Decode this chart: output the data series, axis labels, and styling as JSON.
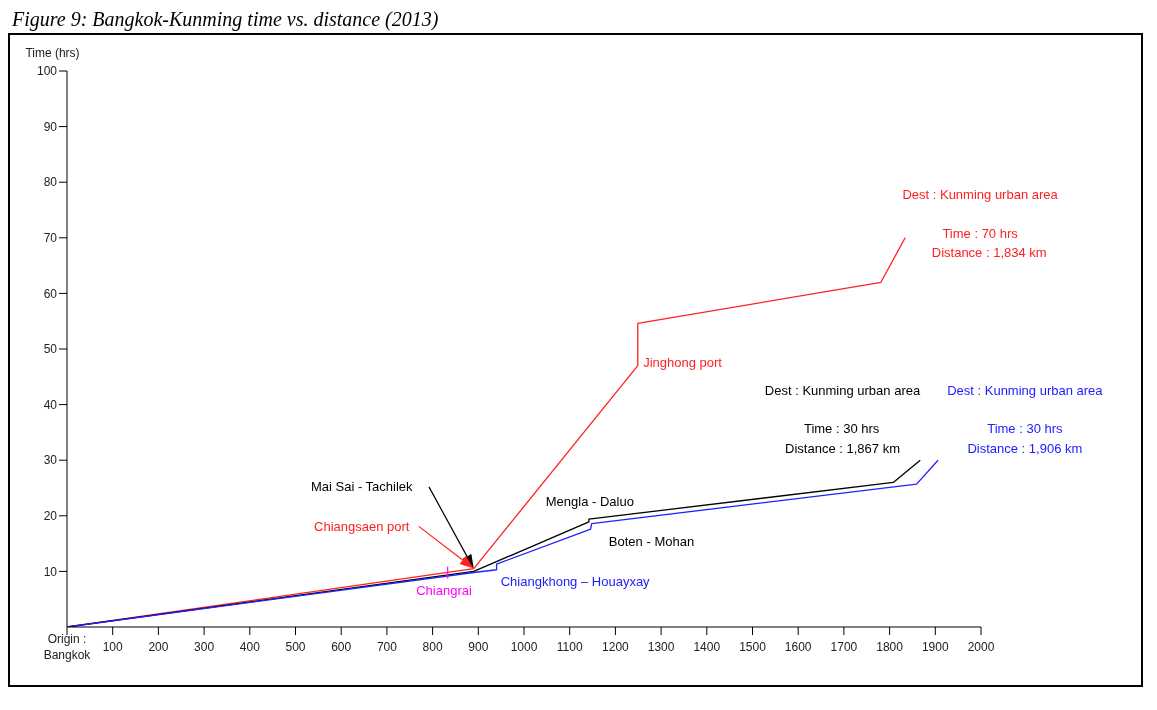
{
  "chart_data": {
    "type": "line",
    "title": "Figure 9: Bangkok-Kunming time vs. distance (2013)",
    "ylabel": "Time (hrs)",
    "xlim": [
      0,
      2000
    ],
    "xticks": [
      {
        "value": 0,
        "label": "Origin :\nBangkok"
      },
      100,
      200,
      300,
      400,
      500,
      600,
      700,
      800,
      900,
      1000,
      1100,
      1200,
      1300,
      1400,
      1500,
      1600,
      1700,
      1800,
      1900,
      2000
    ],
    "ylim": [
      0,
      100
    ],
    "yticks": [
      10,
      20,
      30,
      40,
      50,
      60,
      70,
      80,
      90,
      100
    ],
    "marker": "none",
    "line_style": "solid",
    "series": [
      {
        "color": "#ff2020",
        "x": [
          0,
          890,
          1249,
          1249,
          1781,
          1834
        ],
        "values": [
          0,
          10.5,
          47,
          54.6,
          62,
          70
        ]
      },
      {
        "color": "#000000",
        "x": [
          0,
          890,
          1142,
          1142,
          1808,
          1867
        ],
        "values": [
          0,
          10,
          18.9,
          19.4,
          26,
          30
        ]
      },
      {
        "color": "#2020ff",
        "x": [
          0,
          890,
          940,
          940,
          1146,
          1148,
          1859,
          1906
        ],
        "values": [
          0,
          9.8,
          10.3,
          11.3,
          17.6,
          18.6,
          25.7,
          30
        ]
      }
    ],
    "annotations": [
      "Dest : Kunming urban area",
      "Time : 70 hrs",
      "Distance : 1,834 km",
      "Jinghong port",
      "Dest : Kunming urban area",
      "Time : 30 hrs",
      "Distance : 1,867 km",
      "Dest : Kunming urban area",
      "Time : 30 hrs",
      "Distance : 1,906 km",
      "Mai Sai - Tachilek",
      "Chiangsaen port",
      "Mengla - Daluo",
      "Boten - Mohan",
      "Chiangkhong – Houayxay",
      "Chiangrai"
    ]
  }
}
